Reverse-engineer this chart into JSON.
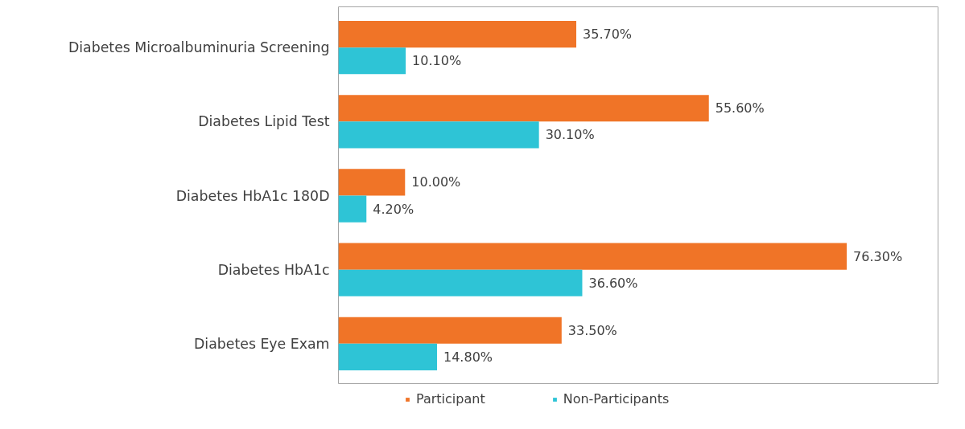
{
  "chart_data": {
    "type": "bar",
    "orientation": "horizontal",
    "categories": [
      "Diabetes Microalbuminuria Screening",
      "Diabetes Lipid Test",
      "Diabetes HbA1c 180D",
      "Diabetes HbA1c",
      "Diabetes Eye Exam"
    ],
    "series": [
      {
        "name": "Participant",
        "color": "#f07427",
        "values": [
          35.7,
          55.6,
          10.0,
          76.3,
          33.5
        ],
        "value_labels": [
          "35.70%",
          "55.60%",
          "10.00%",
          "76.30%",
          "33.50%"
        ]
      },
      {
        "name": "Non-Participants",
        "color": "#2ec4d6",
        "values": [
          10.1,
          30.1,
          4.2,
          36.6,
          14.8
        ],
        "value_labels": [
          "10.10%",
          "30.10%",
          "4.20%",
          "36.60%",
          "14.80%"
        ]
      }
    ],
    "xlim": [
      0,
      90
    ],
    "tick_labels": "y",
    "grid": false,
    "legend": "bottom"
  }
}
